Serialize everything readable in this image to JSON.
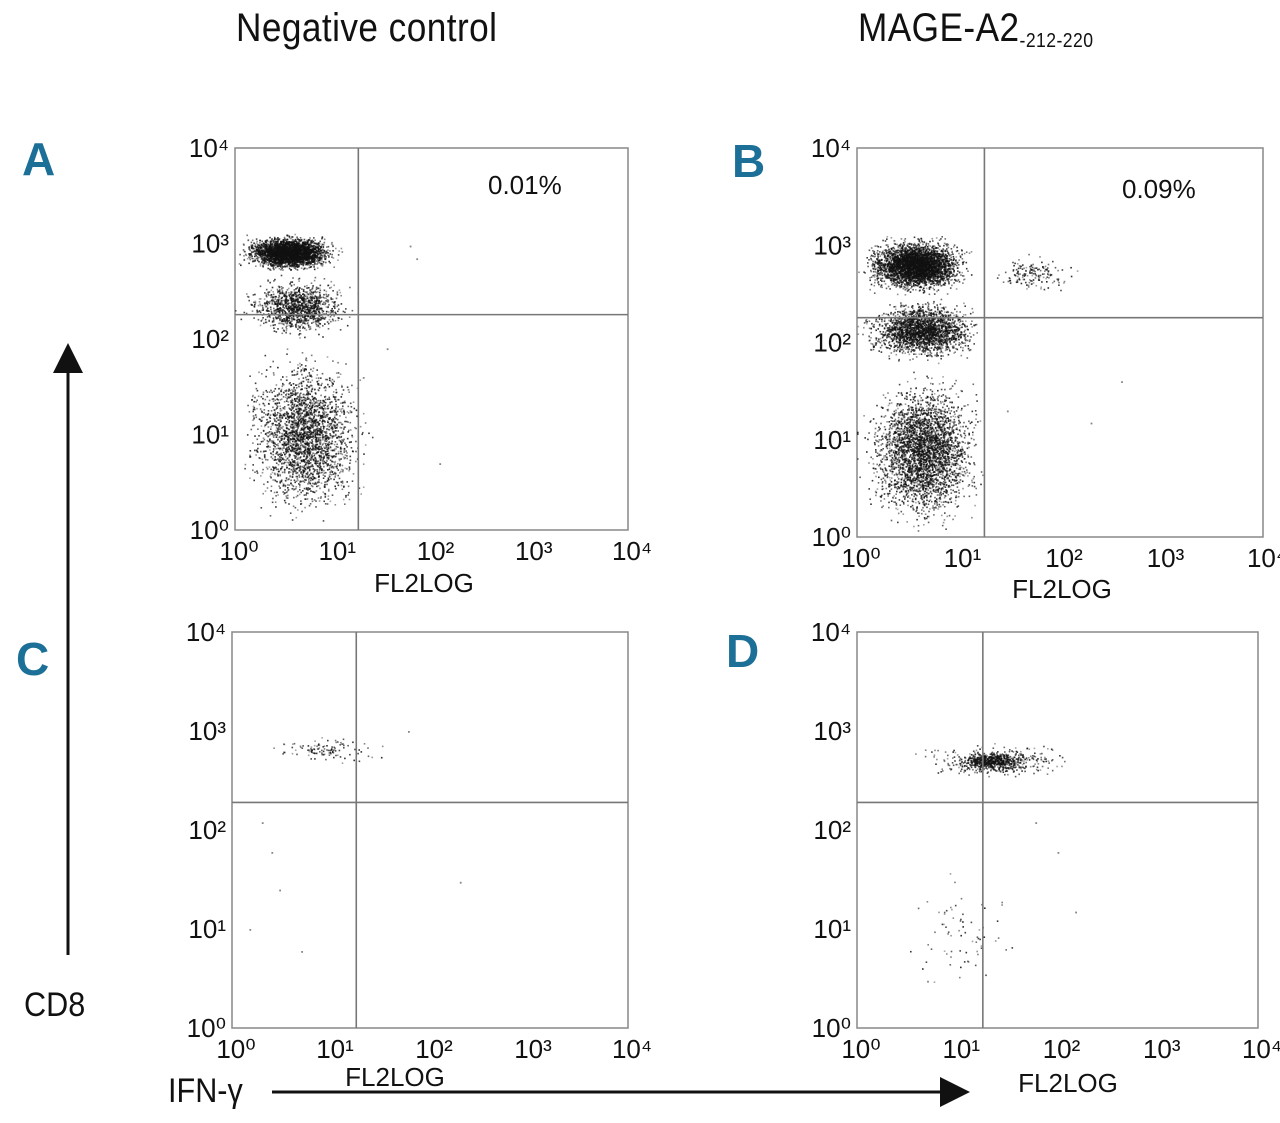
{
  "columns": {
    "left": {
      "title": "Negative control"
    },
    "right": {
      "title": "MAGE-A2",
      "title_sub": "-212-220"
    }
  },
  "axes": {
    "y_label": "CD8",
    "x_label": "IFN-γ"
  },
  "chart_data": [
    {
      "type": "scatter",
      "panel": "A",
      "xlabel": "FL2LOG",
      "x_scale": "log",
      "y_scale": "log",
      "xlim": [
        1,
        10000
      ],
      "ylim": [
        1,
        10000
      ],
      "x_ticks": [
        "10⁰",
        "10¹",
        "10²",
        "10³",
        "10⁴"
      ],
      "y_ticks": [
        "10⁰",
        "10¹",
        "10²",
        "10³",
        "10⁴"
      ],
      "quadrant": {
        "x": 18,
        "y": 180
      },
      "annotation": "0.01%",
      "clusters": [
        {
          "x": [
            1,
            12
          ],
          "y": [
            500,
            1300
          ],
          "n": 3200
        },
        {
          "x": [
            1,
            18
          ],
          "y": [
            100,
            500
          ],
          "n": 1200
        },
        {
          "x": [
            1,
            25
          ],
          "y": [
            1,
            100
          ],
          "n": 2600
        }
      ],
      "sparse": [
        [
          60,
          950
        ],
        [
          70,
          700
        ],
        [
          35,
          80
        ],
        [
          120,
          5
        ],
        [
          20,
          40
        ],
        [
          14,
          30
        ]
      ]
    },
    {
      "type": "scatter",
      "panel": "B",
      "xlabel": "FL2LOG",
      "x_scale": "log",
      "y_scale": "log",
      "xlim": [
        1,
        10000
      ],
      "ylim": [
        1,
        10000
      ],
      "x_ticks": [
        "10⁰",
        "10¹",
        "10²",
        "10³",
        "10⁴"
      ],
      "y_ticks": [
        "10⁰",
        "10¹",
        "10²",
        "10³",
        "10⁴"
      ],
      "quadrant": {
        "x": 18,
        "y": 180
      },
      "annotation": "0.09%",
      "clusters": [
        {
          "x": [
            1,
            14
          ],
          "y": [
            300,
            1300
          ],
          "n": 3800
        },
        {
          "x": [
            1,
            18
          ],
          "y": [
            60,
            300
          ],
          "n": 2200
        },
        {
          "x": [
            1,
            20
          ],
          "y": [
            1,
            60
          ],
          "n": 3200
        },
        {
          "x": [
            18,
            160
          ],
          "y": [
            300,
            900
          ],
          "n": 160
        }
      ],
      "sparse": [
        [
          200,
          15
        ],
        [
          400,
          40
        ],
        [
          30,
          20
        ]
      ]
    },
    {
      "type": "scatter",
      "panel": "C",
      "xlabel": "FL2LOG",
      "x_scale": "log",
      "y_scale": "log",
      "xlim": [
        1,
        10000
      ],
      "ylim": [
        1,
        10000
      ],
      "x_ticks": [
        "10⁰",
        "10¹",
        "10²",
        "10³",
        "10⁴"
      ],
      "y_ticks": [
        "10⁰",
        "10¹",
        "10²",
        "10³",
        "10⁴"
      ],
      "quadrant": {
        "x": 18,
        "y": 190
      },
      "annotation": "",
      "clusters": [
        {
          "x": [
            2,
            40
          ],
          "y": [
            450,
            950
          ],
          "n": 110
        }
      ],
      "sparse": [
        [
          2,
          120
        ],
        [
          3,
          25
        ],
        [
          1.5,
          10
        ],
        [
          5,
          6
        ],
        [
          200,
          30
        ],
        [
          60,
          1000
        ],
        [
          2.5,
          60
        ]
      ]
    },
    {
      "type": "scatter",
      "panel": "D",
      "xlabel": "FL2LOG",
      "x_scale": "log",
      "y_scale": "log",
      "xlim": [
        1,
        10000
      ],
      "ylim": [
        1,
        10000
      ],
      "x_ticks": [
        "10⁰",
        "10¹",
        "10²",
        "10³",
        "10⁴"
      ],
      "y_ticks": [
        "10⁰",
        "10¹",
        "10²",
        "10³",
        "10⁴"
      ],
      "quadrant": {
        "x": 18,
        "y": 190
      },
      "annotation": "",
      "clusters": [
        {
          "x": [
            8,
            60
          ],
          "y": [
            380,
            650
          ],
          "n": 520
        },
        {
          "x": [
            3,
            200
          ],
          "y": [
            320,
            800
          ],
          "n": 360
        },
        {
          "x": [
            2,
            50
          ],
          "y": [
            2,
            40
          ],
          "n": 70
        }
      ],
      "sparse": [
        [
          100,
          60
        ],
        [
          150,
          15
        ],
        [
          60,
          120
        ],
        [
          5,
          3
        ]
      ]
    }
  ]
}
